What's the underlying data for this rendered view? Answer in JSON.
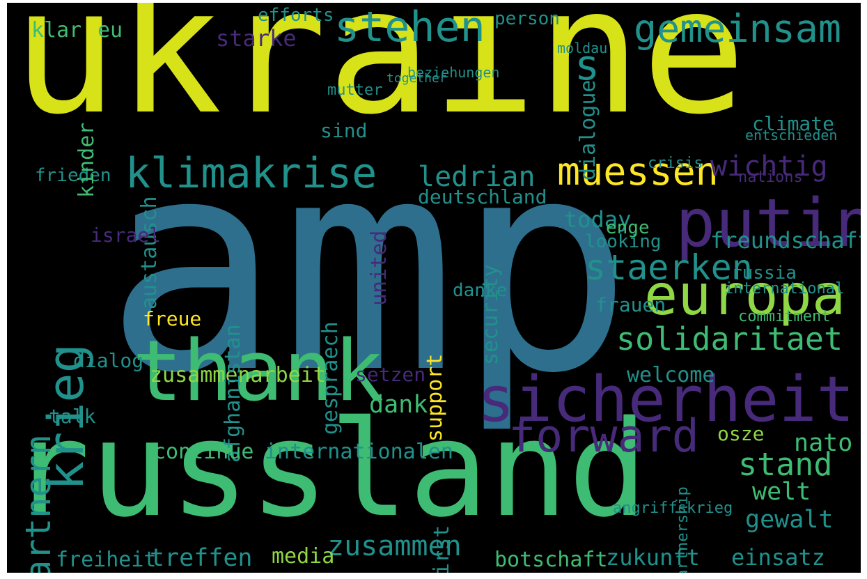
{
  "palette": {
    "background": "#000000",
    "yellow": "#d8e219",
    "lime": "#8fd744",
    "green": "#3fbc73",
    "teal": "#21918c",
    "blue": "#2e6f8e",
    "steel": "#3b528b",
    "purple": "#472a7a",
    "dark": "#440154",
    "bright": "#fde725"
  },
  "words": [
    "ukraine",
    "amp",
    "russland",
    "thank",
    "sicherheit",
    "putin",
    "europa",
    "klimakrise",
    "muessen",
    "stehen",
    "gemeinsam",
    "forward",
    "staerken",
    "solidaritaet",
    "krieg",
    "partnern",
    "ledrian",
    "wichtig",
    "freundschaft",
    "zusammenarbeit",
    "dank",
    "nato",
    "stand",
    "zukunft",
    "einsatz",
    "treffen",
    "freiheit",
    "botschaft",
    "zusammen",
    "internationalen",
    "gewalt",
    "welt",
    "support",
    "austausch",
    "united",
    "security",
    "afghanistan",
    "gespraech",
    "today",
    "deutschland",
    "climate",
    "dialog",
    "freue",
    "frieden",
    "klar",
    "eu",
    "starke",
    "efforts",
    "person",
    "kinder",
    "israel",
    "danke",
    "looking",
    "enge",
    "russia",
    "welcome",
    "continue",
    "media",
    "osze",
    "frauen",
    "setzen",
    "talk",
    "sind",
    "mutter",
    "together",
    "dialogue",
    "first",
    "partnership",
    "angriffskrieg",
    "international",
    "commitment",
    "nations",
    "crisis",
    "entschieden",
    "s",
    "moldau",
    "beziehungen"
  ]
}
